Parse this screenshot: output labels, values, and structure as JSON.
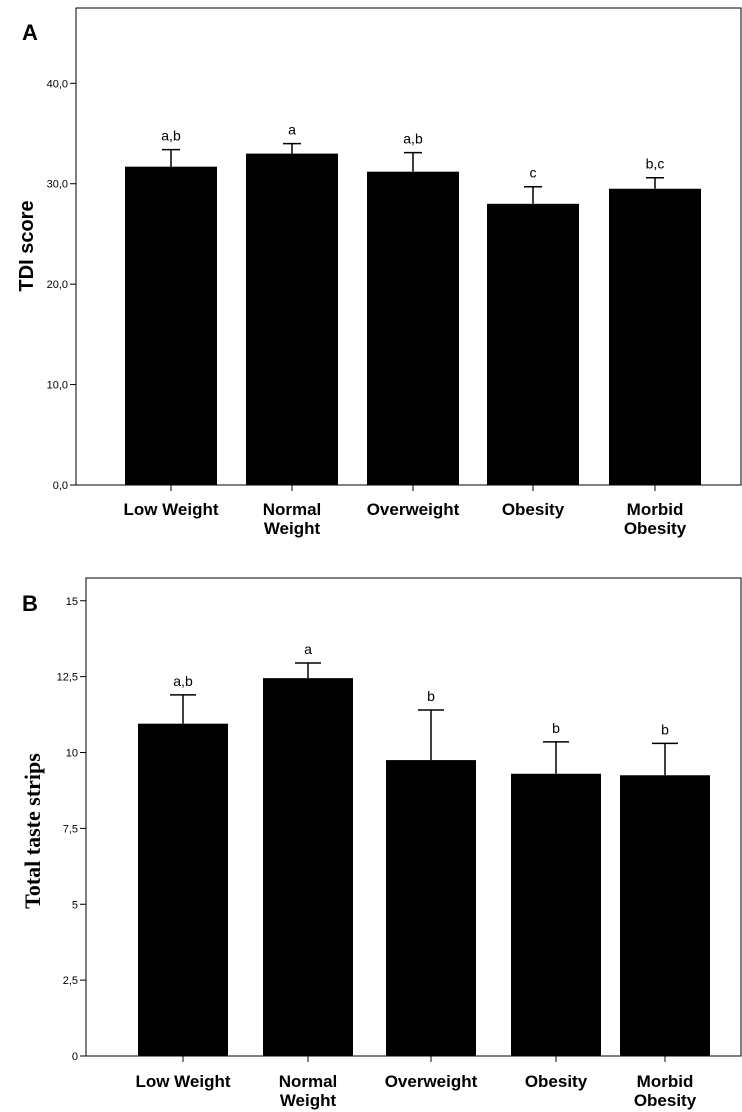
{
  "chart_data": [
    {
      "panel": "A",
      "type": "bar",
      "ylabel": "TDI score",
      "ylim": [
        0,
        47.5
      ],
      "yticks": [
        "0,0",
        "10,0",
        "20,0",
        "30,0",
        "40,0"
      ],
      "ytick_values": [
        0,
        10,
        20,
        30,
        40
      ],
      "categories": [
        [
          "Low Weight"
        ],
        [
          "Normal",
          "Weight"
        ],
        [
          "Overweight"
        ],
        [
          "Obesity"
        ],
        [
          "Morbid",
          "Obesity"
        ]
      ],
      "values": [
        31.7,
        33.0,
        31.2,
        28.0,
        29.5
      ],
      "error_upper": [
        33.4,
        34.0,
        33.1,
        29.7,
        30.6
      ],
      "significance": [
        "a,b",
        "a",
        "a,b",
        "c",
        "b,c"
      ]
    },
    {
      "panel": "B",
      "type": "bar",
      "ylabel": "Total taste strips",
      "ylim": [
        0,
        15.75
      ],
      "yticks": [
        "0",
        "2,5",
        "5",
        "7,5",
        "10",
        "12,5",
        "15"
      ],
      "ytick_values": [
        0,
        2.5,
        5,
        7.5,
        10,
        12.5,
        15
      ],
      "categories": [
        [
          "Low Weight"
        ],
        [
          "Normal",
          "Weight"
        ],
        [
          "Overweight"
        ],
        [
          "Obesity"
        ],
        [
          "Morbid",
          "Obesity"
        ]
      ],
      "values": [
        10.95,
        12.45,
        9.75,
        9.3,
        9.25
      ],
      "error_upper": [
        11.9,
        12.95,
        11.4,
        10.35,
        10.3
      ],
      "significance": [
        "a,b",
        "a",
        "b",
        "b",
        "b"
      ]
    }
  ]
}
